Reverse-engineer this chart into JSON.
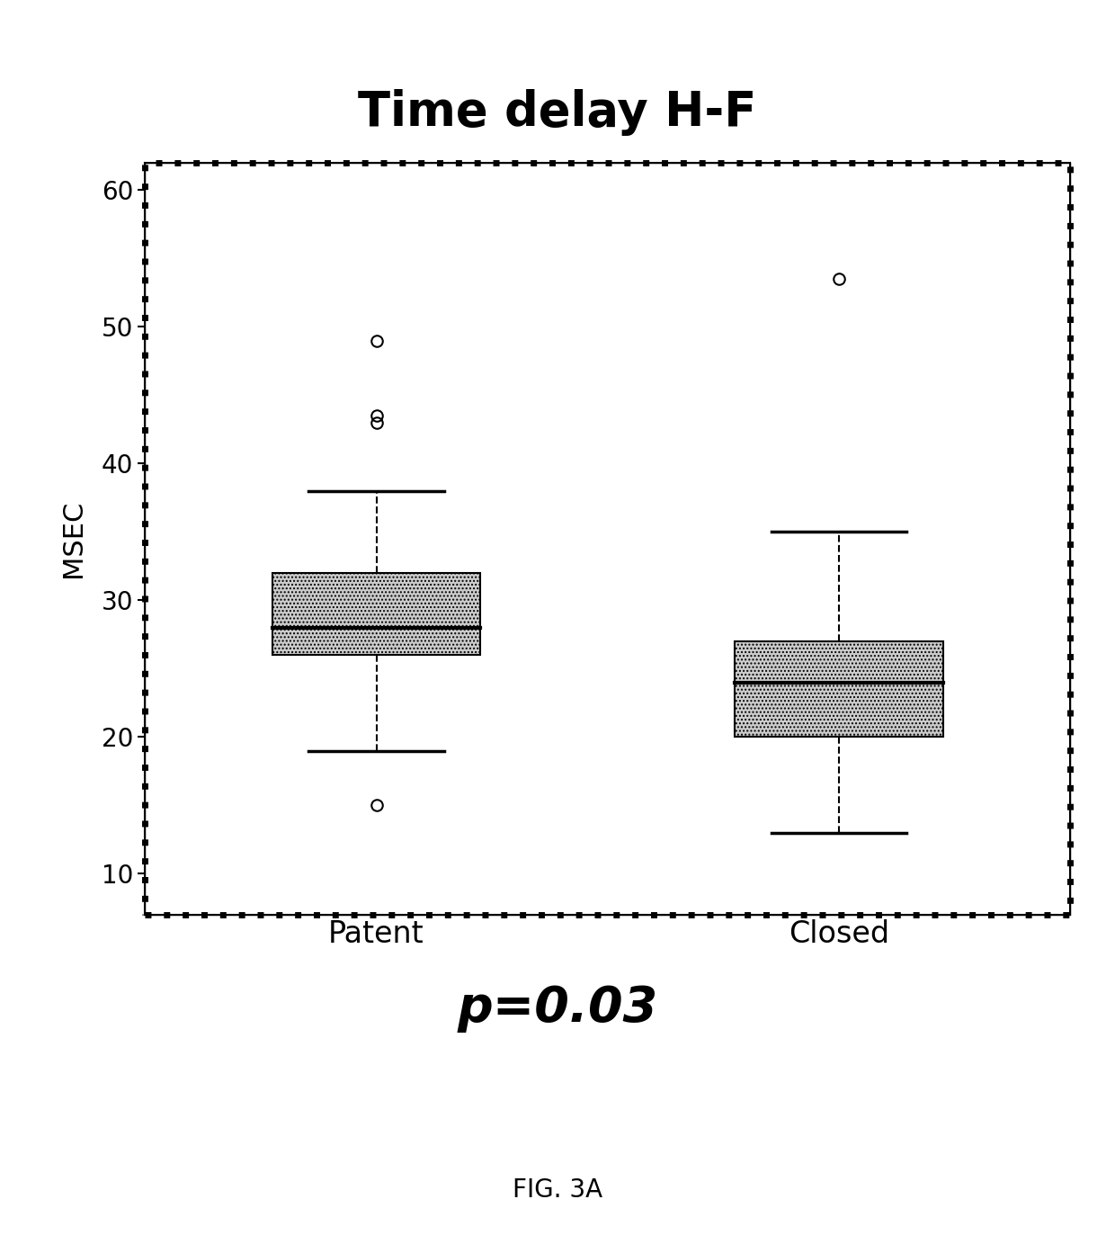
{
  "title": "Time delay H-F",
  "ylabel": "MSEC",
  "pvalue_text": "p=0.03",
  "fig_caption": "FIG. 3A",
  "categories": [
    "Patent",
    "Closed"
  ],
  "ylim": [
    7,
    62
  ],
  "yticks": [
    10,
    20,
    30,
    40,
    50,
    60
  ],
  "patent_stats": {
    "whisker_low": 19,
    "q1": 26,
    "median": 28,
    "q3": 32,
    "whisker_high": 38,
    "outliers": [
      15,
      43,
      43.5,
      49
    ]
  },
  "closed_stats": {
    "whisker_low": 13,
    "q1": 20,
    "median": 24,
    "q3": 27,
    "whisker_high": 35,
    "outliers": [
      53.5
    ]
  },
  "box_facecolor": "#cccccc",
  "box_edgecolor": "#000000",
  "median_color": "#000000",
  "whisker_color": "#000000",
  "outlier_color": "#000000",
  "background_color": "#ffffff",
  "title_fontsize": 38,
  "ylabel_fontsize": 22,
  "tick_fontsize": 20,
  "category_fontsize": 24,
  "pvalue_fontsize": 40,
  "caption_fontsize": 20
}
